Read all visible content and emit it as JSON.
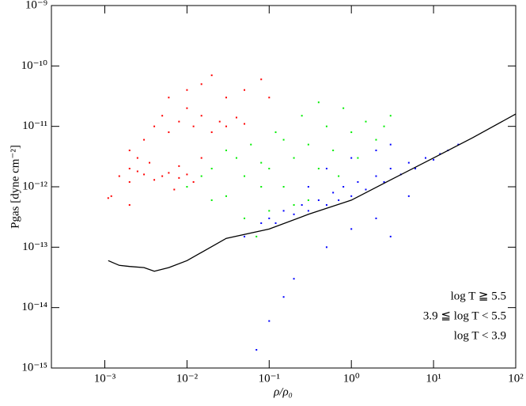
{
  "chart_data": {
    "type": "scatter",
    "x_label": "ρ/ρ₀",
    "y_label": "Pgas [dyne cm⁻²]",
    "log_x": true,
    "log_y": true,
    "legend": "lower right",
    "xlim": [
      0.000224,
      100
    ],
    "ylim": [
      1e-15,
      1e-09
    ],
    "xticks": [
      {
        "value": 0.001,
        "label": "10⁻³"
      },
      {
        "value": 0.01,
        "label": "10⁻²"
      },
      {
        "value": 0.1,
        "label": "10⁻¹"
      },
      {
        "value": 1,
        "label": "10⁰"
      },
      {
        "value": 10,
        "label": "10¹"
      },
      {
        "value": 100,
        "label": "10²"
      }
    ],
    "yticks": [
      {
        "value": 1e-15,
        "label": "10⁻¹⁵"
      },
      {
        "value": 1e-14,
        "label": "10⁻¹⁴"
      },
      {
        "value": 1e-13,
        "label": "10⁻¹³"
      },
      {
        "value": 1e-12,
        "label": "10⁻¹²"
      },
      {
        "value": 1e-11,
        "label": "10⁻¹¹"
      },
      {
        "value": 1e-10,
        "label": "10⁻¹⁰"
      },
      {
        "value": 1e-09,
        "label": "10⁻⁹"
      }
    ],
    "series": [
      {
        "name": "log T ≧ 5.5",
        "color": "#ff0000",
        "x": [
          0.0011,
          0.0012,
          0.0015,
          0.002,
          0.0025,
          0.003,
          0.002,
          0.0035,
          0.004,
          0.005,
          0.006,
          0.008,
          0.01,
          0.012,
          0.003,
          0.004,
          0.005,
          0.006,
          0.008,
          0.01,
          0.012,
          0.015,
          0.02,
          0.025,
          0.03,
          0.04,
          0.05,
          0.006,
          0.01,
          0.015,
          0.02,
          0.03,
          0.05,
          0.08,
          0.1,
          0.002,
          0.0025,
          0.015,
          0.008,
          0.007,
          0.002
        ],
        "values": [
          6.5e-13,
          7e-13,
          1.5e-12,
          2e-12,
          1.8e-12,
          1.6e-12,
          1.2e-12,
          2.5e-12,
          1.3e-12,
          1.5e-12,
          1.7e-12,
          1.4e-12,
          1.6e-12,
          1.2e-12,
          6e-12,
          1e-11,
          1.5e-11,
          8e-12,
          1.2e-11,
          2e-11,
          1e-11,
          1.5e-11,
          8e-12,
          1.2e-11,
          1e-11,
          1.4e-11,
          1.1e-11,
          3e-11,
          4e-11,
          5e-11,
          7e-11,
          3e-11,
          4e-11,
          6e-11,
          3e-11,
          4e-12,
          3e-12,
          3e-12,
          2.2e-12,
          9e-13,
          5e-13
        ]
      },
      {
        "name": "3.9 ≦ log T < 5.5",
        "color": "#00ee00",
        "x": [
          0.01,
          0.015,
          0.02,
          0.03,
          0.04,
          0.05,
          0.06,
          0.08,
          0.1,
          0.1,
          0.12,
          0.15,
          0.2,
          0.25,
          0.3,
          0.3,
          0.4,
          0.5,
          0.6,
          0.8,
          1,
          1.2,
          1.5,
          2,
          2.5,
          3,
          0.05,
          0.07,
          0.2,
          0.15,
          0.03,
          0.4,
          0.7,
          0.02,
          0.08
        ],
        "values": [
          1e-12,
          1.5e-12,
          2e-12,
          7e-13,
          3e-12,
          1.5e-12,
          5e-12,
          1e-12,
          4e-13,
          2e-12,
          8e-12,
          1e-12,
          3e-12,
          1.5e-11,
          6e-13,
          5e-12,
          2e-12,
          1e-11,
          4e-12,
          2e-11,
          8e-12,
          3e-12,
          1.2e-11,
          6e-12,
          1e-11,
          1.5e-11,
          3e-13,
          1.5e-13,
          5e-13,
          6e-12,
          4e-12,
          2.5e-11,
          1.5e-12,
          6e-13,
          2.5e-12
        ]
      },
      {
        "name": "log T < 3.9",
        "color": "#0000ff",
        "x": [
          0.08,
          0.1,
          0.12,
          0.15,
          0.2,
          0.25,
          0.3,
          0.4,
          0.5,
          0.6,
          0.7,
          0.8,
          1,
          1.2,
          1.5,
          2,
          2.5,
          3,
          4,
          5,
          6,
          8,
          10,
          12,
          15,
          20,
          0.3,
          0.5,
          1,
          2,
          3,
          1,
          2,
          0.05,
          0.2,
          0.15,
          0.1,
          0.07,
          3,
          0.5,
          5
        ],
        "values": [
          2.5e-13,
          3e-13,
          2.5e-13,
          4e-13,
          3.5e-13,
          5e-13,
          4e-13,
          6e-13,
          5e-13,
          8e-13,
          6e-13,
          1e-12,
          7e-13,
          1.2e-12,
          9e-13,
          1.5e-12,
          1.2e-12,
          2e-12,
          1.6e-12,
          2.5e-12,
          2e-12,
          3e-12,
          2.8e-12,
          3.5e-12,
          4e-12,
          5e-12,
          1e-12,
          2e-12,
          3e-12,
          4e-12,
          5e-12,
          2e-13,
          3e-13,
          1.5e-13,
          3e-14,
          1.5e-14,
          6e-15,
          2e-15,
          1.5e-13,
          1e-13,
          7e-13
        ]
      },
      {
        "type": "line",
        "color": "#000000",
        "x": [
          0.0011,
          0.0015,
          0.002,
          0.003,
          0.004,
          0.006,
          0.01,
          0.03,
          0.1,
          0.3,
          1,
          3,
          10,
          30,
          100
        ],
        "values": [
          6e-14,
          5e-14,
          4.8e-14,
          4.6e-14,
          4e-14,
          4.6e-14,
          6e-14,
          1.4e-13,
          2e-13,
          3.5e-13,
          6e-13,
          1.3e-12,
          3e-12,
          6.5e-12,
          1.6e-11
        ]
      }
    ]
  }
}
